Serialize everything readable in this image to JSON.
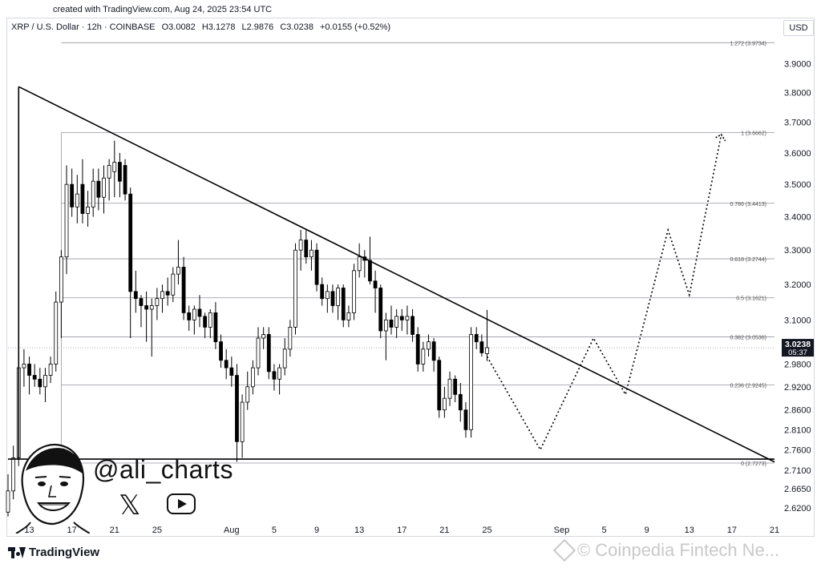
{
  "header": {
    "caption": "created with TradingView.com, Aug 24, 2025 23:54 UTC",
    "symbol": "XRP / U.S. Dollar · 12h · COINBASE",
    "open": "O3.0082",
    "high": "H3.1278",
    "low": "L2.9876",
    "close": "C3.0238",
    "change": "+0.0155 (+0.52%)",
    "currency_button": "USD"
  },
  "colors": {
    "text": "#131722",
    "grid": "#d1d4dc",
    "fib": "#9598a1",
    "candle": "#000000",
    "price_tag_bg": "#131722"
  },
  "chart_data": {
    "type": "candlestick",
    "title": "",
    "y_axis": {
      "scale": "log",
      "range": [
        2.59,
        4.0
      ],
      "ticks": [
        "3.9000",
        "3.8000",
        "3.7000",
        "3.6000",
        "3.5000",
        "3.4000",
        "3.3000",
        "3.2000",
        "3.1000",
        "3.0400",
        "2.9800",
        "2.9200",
        "2.8600",
        "2.8100",
        "2.7600",
        "2.7100",
        "2.6650",
        "2.6200"
      ]
    },
    "x_axis": {
      "unit": "date (2025)",
      "range": [
        "2025-07-11",
        "2025-09-21"
      ],
      "ticks": [
        {
          "label": "13",
          "date": "2025-07-13"
        },
        {
          "label": "17",
          "date": "2025-07-17"
        },
        {
          "label": "21",
          "date": "2025-07-21"
        },
        {
          "label": "25",
          "date": "2025-07-25"
        },
        {
          "label": "Aug",
          "date": "2025-08-01"
        },
        {
          "label": "5",
          "date": "2025-08-05"
        },
        {
          "label": "9",
          "date": "2025-08-09"
        },
        {
          "label": "13",
          "date": "2025-08-13"
        },
        {
          "label": "17",
          "date": "2025-08-17"
        },
        {
          "label": "21",
          "date": "2025-08-21"
        },
        {
          "label": "25",
          "date": "2025-08-25"
        },
        {
          "label": "Sep",
          "date": "2025-09-01"
        },
        {
          "label": "5",
          "date": "2025-09-05"
        },
        {
          "label": "9",
          "date": "2025-09-09"
        },
        {
          "label": "13",
          "date": "2025-09-13"
        },
        {
          "label": "17",
          "date": "2025-09-17"
        },
        {
          "label": "21",
          "date": "2025-09-21"
        }
      ]
    },
    "last_price": {
      "value": 3.0238,
      "label": "3.0238",
      "countdown": "05:37"
    },
    "fib_levels": [
      {
        "ratio": 1.272,
        "value": 3.9734,
        "label": "1.272 (3.9734)"
      },
      {
        "ratio": 1.0,
        "value": 3.6662,
        "label": "1 (3.6662)"
      },
      {
        "ratio": 0.786,
        "value": 3.4413,
        "label": "0.786 (3.4413)"
      },
      {
        "ratio": 0.618,
        "value": 3.2744,
        "label": "0.618 (3.2744)"
      },
      {
        "ratio": 0.5,
        "value": 3.1621,
        "label": "0.5 (3.1621)"
      },
      {
        "ratio": 0.382,
        "value": 3.0536,
        "label": "0.382 (3.0536)"
      },
      {
        "ratio": 0.236,
        "value": 2.9245,
        "label": "0.236 (2.9245)"
      },
      {
        "ratio": 0.0,
        "value": 2.7273,
        "label": "0 (2.7273)"
      }
    ],
    "candles": [
      {
        "t": "2025-07-11T00",
        "o": 2.61,
        "h": 2.7,
        "l": 2.6,
        "c": 2.66
      },
      {
        "t": "2025-07-11T12",
        "o": 2.66,
        "h": 2.77,
        "l": 2.64,
        "c": 2.74
      },
      {
        "t": "2025-07-12T00",
        "o": 2.74,
        "h": 2.99,
        "l": 2.72,
        "c": 2.97
      },
      {
        "t": "2025-07-12T12",
        "o": 2.97,
        "h": 3.02,
        "l": 2.92,
        "c": 2.98
      },
      {
        "t": "2025-07-13T00",
        "o": 2.98,
        "h": 3.0,
        "l": 2.9,
        "c": 2.95
      },
      {
        "t": "2025-07-13T12",
        "o": 2.95,
        "h": 2.98,
        "l": 2.92,
        "c": 2.94
      },
      {
        "t": "2025-07-14T00",
        "o": 2.94,
        "h": 2.97,
        "l": 2.9,
        "c": 2.92
      },
      {
        "t": "2025-07-14T12",
        "o": 2.92,
        "h": 2.97,
        "l": 2.88,
        "c": 2.95
      },
      {
        "t": "2025-07-15T00",
        "o": 2.95,
        "h": 3.0,
        "l": 2.93,
        "c": 2.98
      },
      {
        "t": "2025-07-15T12",
        "o": 2.98,
        "h": 3.18,
        "l": 2.96,
        "c": 3.15
      },
      {
        "t": "2025-07-16T00",
        "o": 3.15,
        "h": 3.3,
        "l": 3.05,
        "c": 3.28
      },
      {
        "t": "2025-07-16T12",
        "o": 3.28,
        "h": 3.56,
        "l": 3.23,
        "c": 3.5
      },
      {
        "t": "2025-07-17T00",
        "o": 3.5,
        "h": 3.55,
        "l": 3.4,
        "c": 3.43
      },
      {
        "t": "2025-07-17T12",
        "o": 3.43,
        "h": 3.53,
        "l": 3.38,
        "c": 3.47
      },
      {
        "t": "2025-07-18T00",
        "o": 3.5,
        "h": 3.58,
        "l": 3.38,
        "c": 3.41
      },
      {
        "t": "2025-07-18T12",
        "o": 3.41,
        "h": 3.48,
        "l": 3.37,
        "c": 3.43
      },
      {
        "t": "2025-07-19T00",
        "o": 3.43,
        "h": 3.55,
        "l": 3.4,
        "c": 3.51
      },
      {
        "t": "2025-07-19T12",
        "o": 3.51,
        "h": 3.55,
        "l": 3.42,
        "c": 3.46
      },
      {
        "t": "2025-07-20T00",
        "o": 3.46,
        "h": 3.56,
        "l": 3.41,
        "c": 3.52
      },
      {
        "t": "2025-07-20T12",
        "o": 3.52,
        "h": 3.58,
        "l": 3.45,
        "c": 3.56
      },
      {
        "t": "2025-07-21T00",
        "o": 3.54,
        "h": 3.64,
        "l": 3.46,
        "c": 3.57
      },
      {
        "t": "2025-07-21T12",
        "o": 3.57,
        "h": 3.6,
        "l": 3.46,
        "c": 3.51
      },
      {
        "t": "2025-07-22T00",
        "o": 3.56,
        "h": 3.58,
        "l": 3.45,
        "c": 3.47
      },
      {
        "t": "2025-07-22T12",
        "o": 3.47,
        "h": 3.49,
        "l": 3.05,
        "c": 3.18
      },
      {
        "t": "2025-07-23T00",
        "o": 3.18,
        "h": 3.24,
        "l": 3.12,
        "c": 3.16
      },
      {
        "t": "2025-07-23T12",
        "o": 3.16,
        "h": 3.17,
        "l": 3.08,
        "c": 3.14
      },
      {
        "t": "2025-07-24T00",
        "o": 3.14,
        "h": 3.18,
        "l": 3.04,
        "c": 3.13
      },
      {
        "t": "2025-07-24T12",
        "o": 3.13,
        "h": 3.16,
        "l": 3.0,
        "c": 3.14
      },
      {
        "t": "2025-07-25T00",
        "o": 3.14,
        "h": 3.19,
        "l": 3.1,
        "c": 3.16
      },
      {
        "t": "2025-07-25T12",
        "o": 3.16,
        "h": 3.2,
        "l": 3.12,
        "c": 3.18
      },
      {
        "t": "2025-07-26T00",
        "o": 3.18,
        "h": 3.22,
        "l": 3.14,
        "c": 3.17
      },
      {
        "t": "2025-07-26T12",
        "o": 3.17,
        "h": 3.25,
        "l": 3.15,
        "c": 3.23
      },
      {
        "t": "2025-07-27T00",
        "o": 3.23,
        "h": 3.33,
        "l": 3.2,
        "c": 3.25
      },
      {
        "t": "2025-07-27T12",
        "o": 3.25,
        "h": 3.28,
        "l": 3.1,
        "c": 3.12
      },
      {
        "t": "2025-07-28T00",
        "o": 3.12,
        "h": 3.14,
        "l": 3.07,
        "c": 3.1
      },
      {
        "t": "2025-07-28T12",
        "o": 3.1,
        "h": 3.14,
        "l": 3.06,
        "c": 3.13
      },
      {
        "t": "2025-07-29T00",
        "o": 3.13,
        "h": 3.17,
        "l": 3.08,
        "c": 3.11
      },
      {
        "t": "2025-07-29T12",
        "o": 3.11,
        "h": 3.12,
        "l": 3.05,
        "c": 3.08
      },
      {
        "t": "2025-07-30T00",
        "o": 3.08,
        "h": 3.13,
        "l": 3.05,
        "c": 3.12
      },
      {
        "t": "2025-07-30T12",
        "o": 3.12,
        "h": 3.15,
        "l": 3.02,
        "c": 3.04
      },
      {
        "t": "2025-07-31T00",
        "o": 3.04,
        "h": 3.06,
        "l": 2.97,
        "c": 2.99
      },
      {
        "t": "2025-07-31T12",
        "o": 2.99,
        "h": 3.02,
        "l": 2.94,
        "c": 2.97
      },
      {
        "t": "2025-08-01T00",
        "o": 2.97,
        "h": 3.0,
        "l": 2.92,
        "c": 2.95
      },
      {
        "t": "2025-08-01T12",
        "o": 2.95,
        "h": 2.98,
        "l": 2.73,
        "c": 2.78
      },
      {
        "t": "2025-08-02T00",
        "o": 2.78,
        "h": 2.9,
        "l": 2.74,
        "c": 2.88
      },
      {
        "t": "2025-08-02T12",
        "o": 2.88,
        "h": 2.96,
        "l": 2.86,
        "c": 2.92
      },
      {
        "t": "2025-08-03T00",
        "o": 2.92,
        "h": 2.99,
        "l": 2.9,
        "c": 2.97
      },
      {
        "t": "2025-08-03T12",
        "o": 2.97,
        "h": 3.08,
        "l": 2.95,
        "c": 3.05
      },
      {
        "t": "2025-08-04T00",
        "o": 3.05,
        "h": 3.08,
        "l": 3.02,
        "c": 3.06
      },
      {
        "t": "2025-08-04T12",
        "o": 3.06,
        "h": 3.08,
        "l": 2.94,
        "c": 2.96
      },
      {
        "t": "2025-08-05T00",
        "o": 2.96,
        "h": 2.98,
        "l": 2.91,
        "c": 2.94
      },
      {
        "t": "2025-08-05T12",
        "o": 2.94,
        "h": 2.98,
        "l": 2.9,
        "c": 2.97
      },
      {
        "t": "2025-08-06T00",
        "o": 2.97,
        "h": 3.05,
        "l": 2.95,
        "c": 3.02
      },
      {
        "t": "2025-08-06T12",
        "o": 3.02,
        "h": 3.1,
        "l": 3.0,
        "c": 3.08
      },
      {
        "t": "2025-08-07T00",
        "o": 3.08,
        "h": 3.32,
        "l": 3.06,
        "c": 3.3
      },
      {
        "t": "2025-08-07T12",
        "o": 3.3,
        "h": 3.36,
        "l": 3.24,
        "c": 3.33
      },
      {
        "t": "2025-08-08T00",
        "o": 3.33,
        "h": 3.36,
        "l": 3.26,
        "c": 3.28
      },
      {
        "t": "2025-08-08T12",
        "o": 3.28,
        "h": 3.33,
        "l": 3.24,
        "c": 3.3
      },
      {
        "t": "2025-08-09T00",
        "o": 3.3,
        "h": 3.32,
        "l": 3.18,
        "c": 3.2
      },
      {
        "t": "2025-08-09T12",
        "o": 3.2,
        "h": 3.22,
        "l": 3.14,
        "c": 3.16
      },
      {
        "t": "2025-08-10T00",
        "o": 3.16,
        "h": 3.2,
        "l": 3.12,
        "c": 3.18
      },
      {
        "t": "2025-08-10T12",
        "o": 3.18,
        "h": 3.2,
        "l": 3.12,
        "c": 3.14
      },
      {
        "t": "2025-08-11T00",
        "o": 3.14,
        "h": 3.2,
        "l": 3.1,
        "c": 3.19
      },
      {
        "t": "2025-08-11T12",
        "o": 3.19,
        "h": 3.2,
        "l": 3.08,
        "c": 3.1
      },
      {
        "t": "2025-08-12T00",
        "o": 3.1,
        "h": 3.14,
        "l": 3.08,
        "c": 3.12
      },
      {
        "t": "2025-08-12T12",
        "o": 3.12,
        "h": 3.26,
        "l": 3.1,
        "c": 3.24
      },
      {
        "t": "2025-08-13T00",
        "o": 3.24,
        "h": 3.32,
        "l": 3.22,
        "c": 3.28
      },
      {
        "t": "2025-08-13T12",
        "o": 3.28,
        "h": 3.3,
        "l": 3.22,
        "c": 3.27
      },
      {
        "t": "2025-08-14T00",
        "o": 3.27,
        "h": 3.34,
        "l": 3.2,
        "c": 3.21
      },
      {
        "t": "2025-08-14T12",
        "o": 3.21,
        "h": 3.24,
        "l": 3.12,
        "c": 3.19
      },
      {
        "t": "2025-08-15T00",
        "o": 3.19,
        "h": 3.2,
        "l": 3.05,
        "c": 3.07
      },
      {
        "t": "2025-08-15T12",
        "o": 3.07,
        "h": 3.12,
        "l": 2.99,
        "c": 3.1
      },
      {
        "t": "2025-08-16T00",
        "o": 3.1,
        "h": 3.14,
        "l": 3.06,
        "c": 3.08
      },
      {
        "t": "2025-08-16T12",
        "o": 3.08,
        "h": 3.13,
        "l": 3.05,
        "c": 3.11
      },
      {
        "t": "2025-08-17T00",
        "o": 3.11,
        "h": 3.13,
        "l": 3.07,
        "c": 3.1
      },
      {
        "t": "2025-08-17T12",
        "o": 3.1,
        "h": 3.14,
        "l": 3.06,
        "c": 3.11
      },
      {
        "t": "2025-08-18T00",
        "o": 3.11,
        "h": 3.13,
        "l": 3.04,
        "c": 3.06
      },
      {
        "t": "2025-08-18T12",
        "o": 3.06,
        "h": 3.08,
        "l": 2.96,
        "c": 2.98
      },
      {
        "t": "2025-08-19T00",
        "o": 2.98,
        "h": 3.04,
        "l": 2.96,
        "c": 3.02
      },
      {
        "t": "2025-08-19T12",
        "o": 3.02,
        "h": 3.06,
        "l": 3.0,
        "c": 3.04
      },
      {
        "t": "2025-08-20T00",
        "o": 3.04,
        "h": 3.05,
        "l": 2.96,
        "c": 2.99
      },
      {
        "t": "2025-08-20T12",
        "o": 2.99,
        "h": 3.0,
        "l": 2.84,
        "c": 2.86
      },
      {
        "t": "2025-08-21T00",
        "o": 2.86,
        "h": 2.92,
        "l": 2.84,
        "c": 2.89
      },
      {
        "t": "2025-08-21T12",
        "o": 2.89,
        "h": 2.96,
        "l": 2.87,
        "c": 2.94
      },
      {
        "t": "2025-08-22T00",
        "o": 2.94,
        "h": 2.95,
        "l": 2.88,
        "c": 2.9
      },
      {
        "t": "2025-08-22T12",
        "o": 2.9,
        "h": 2.93,
        "l": 2.83,
        "c": 2.86
      },
      {
        "t": "2025-08-23T00",
        "o": 2.86,
        "h": 2.88,
        "l": 2.79,
        "c": 2.81
      },
      {
        "t": "2025-08-23T12",
        "o": 2.81,
        "h": 3.08,
        "l": 2.79,
        "c": 3.06
      },
      {
        "t": "2025-08-24T00",
        "o": 3.06,
        "h": 3.08,
        "l": 3.02,
        "c": 3.04
      },
      {
        "t": "2025-08-24T12",
        "o": 3.04,
        "h": 3.06,
        "l": 3.0,
        "c": 3.01
      },
      {
        "t": "2025-08-25T00",
        "o": 3.008,
        "h": 3.128,
        "l": 2.988,
        "c": 3.024
      }
    ],
    "drawings": {
      "trendline": [
        {
          "date": "2025-07-12",
          "price": 3.82
        },
        {
          "date": "2025-09-21",
          "price": 2.73
        }
      ],
      "support": {
        "from": "2025-07-11",
        "to": "2025-09-21",
        "price": 2.737
      },
      "triangle_left_edge": {
        "date": "2025-07-12",
        "price": 3.82
      },
      "projection": [
        {
          "date": "2025-08-25",
          "price": 3.0
        },
        {
          "date": "2025-08-30",
          "price": 2.76
        },
        {
          "date": "2025-09-04",
          "price": 3.05
        },
        {
          "date": "2025-09-07",
          "price": 2.9
        },
        {
          "date": "2025-09-11",
          "price": 3.36
        },
        {
          "date": "2025-09-13",
          "price": 3.17
        },
        {
          "date": "2025-09-16",
          "price": 3.66
        }
      ]
    }
  },
  "branding": {
    "author": "@ali_charts",
    "platform": "TradingView",
    "watermark": "Coinpedia Fintech Ne..."
  },
  "icons": {
    "x": "x-logo-icon",
    "youtube": "youtube-icon",
    "tradingview": "tradingview-logo-icon",
    "watermark": "coinpedia-logo-icon"
  }
}
